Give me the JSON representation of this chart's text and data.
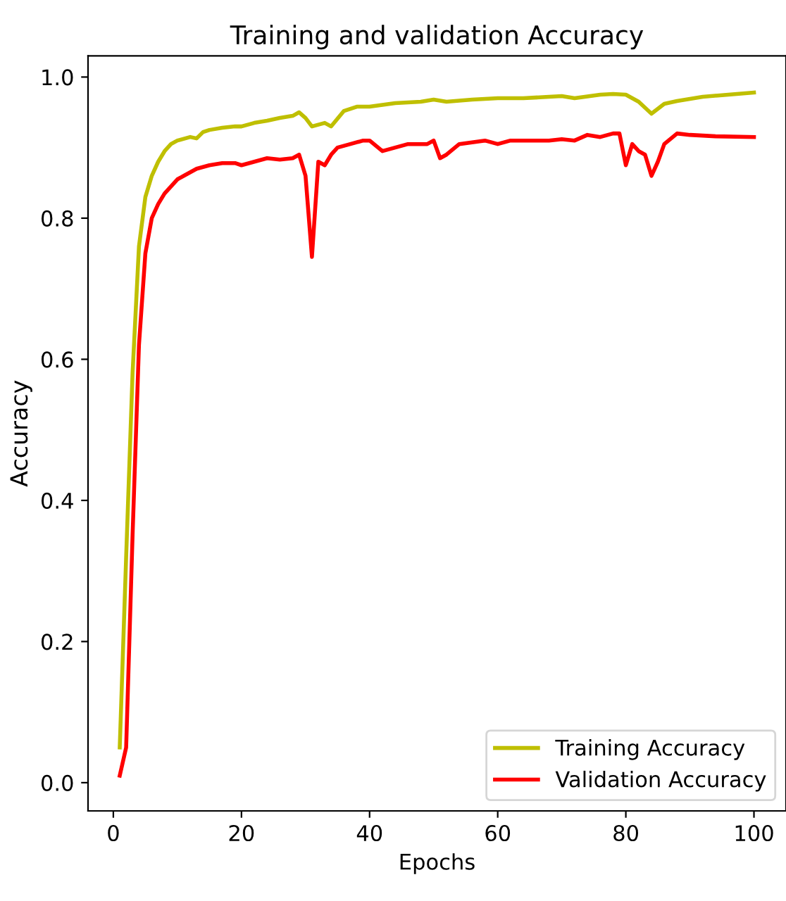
{
  "chart_data": {
    "type": "line",
    "title": "Training and validation Accuracy",
    "xlabel": "Epochs",
    "ylabel": "Accuracy",
    "xlim": [
      -3.95,
      105
    ],
    "ylim": [
      -0.04,
      1.03
    ],
    "xticks": [
      0,
      20,
      40,
      60,
      80,
      100
    ],
    "yticks": [
      {
        "value": 0,
        "label": "0.0"
      },
      {
        "value": 0.2,
        "label": "0.2"
      },
      {
        "value": 0.4,
        "label": "0.4"
      },
      {
        "value": 0.6,
        "label": "0.6"
      },
      {
        "value": 0.8,
        "label": "0.8"
      },
      {
        "value": 1,
        "label": "1.0"
      }
    ],
    "grid": false,
    "legend": "bottom right",
    "marker": "none",
    "line_style": "solid",
    "series": [
      {
        "name": "Training Accuracy",
        "color": "#bfbf00",
        "x": [
          1,
          2,
          3,
          4,
          5,
          6,
          7,
          8,
          9,
          10,
          12,
          13,
          14,
          15,
          17,
          19,
          20,
          22,
          24,
          26,
          28,
          29,
          30,
          31,
          33,
          34,
          36,
          38,
          40,
          44,
          48,
          50,
          52,
          56,
          60,
          64,
          68,
          70,
          72,
          76,
          78,
          80,
          82,
          84,
          86,
          88,
          92,
          96,
          100
        ],
        "values": [
          0.05,
          0.32,
          0.58,
          0.76,
          0.83,
          0.86,
          0.88,
          0.895,
          0.905,
          0.91,
          0.915,
          0.913,
          0.922,
          0.925,
          0.928,
          0.93,
          0.93,
          0.935,
          0.938,
          0.942,
          0.945,
          0.95,
          0.942,
          0.93,
          0.935,
          0.93,
          0.952,
          0.958,
          0.958,
          0.963,
          0.965,
          0.968,
          0.965,
          0.968,
          0.97,
          0.97,
          0.972,
          0.973,
          0.97,
          0.975,
          0.976,
          0.975,
          0.965,
          0.948,
          0.962,
          0.966,
          0.972,
          0.975,
          0.978
        ]
      },
      {
        "name": "Validation Accuracy",
        "color": "#ff0000",
        "x": [
          1,
          2,
          3,
          4,
          5,
          6,
          7,
          8,
          9,
          10,
          11,
          12,
          13,
          15,
          17,
          19,
          20,
          22,
          24,
          26,
          28,
          29,
          30,
          31,
          32,
          33,
          34,
          35,
          37,
          39,
          40,
          42,
          44,
          46,
          49,
          50,
          51,
          52,
          54,
          58,
          60,
          62,
          66,
          68,
          70,
          72,
          74,
          76,
          78,
          79,
          80,
          81,
          82,
          83,
          84,
          85,
          86,
          88,
          90,
          94,
          100
        ],
        "values": [
          0.01,
          0.05,
          0.35,
          0.62,
          0.75,
          0.8,
          0.82,
          0.835,
          0.845,
          0.855,
          0.86,
          0.865,
          0.87,
          0.875,
          0.878,
          0.878,
          0.875,
          0.88,
          0.885,
          0.883,
          0.885,
          0.89,
          0.86,
          0.745,
          0.88,
          0.875,
          0.89,
          0.9,
          0.905,
          0.91,
          0.91,
          0.895,
          0.9,
          0.905,
          0.905,
          0.91,
          0.885,
          0.89,
          0.905,
          0.91,
          0.905,
          0.91,
          0.91,
          0.91,
          0.912,
          0.91,
          0.918,
          0.915,
          0.92,
          0.92,
          0.875,
          0.905,
          0.895,
          0.89,
          0.86,
          0.88,
          0.905,
          0.92,
          0.918,
          0.916,
          0.915
        ]
      }
    ]
  }
}
